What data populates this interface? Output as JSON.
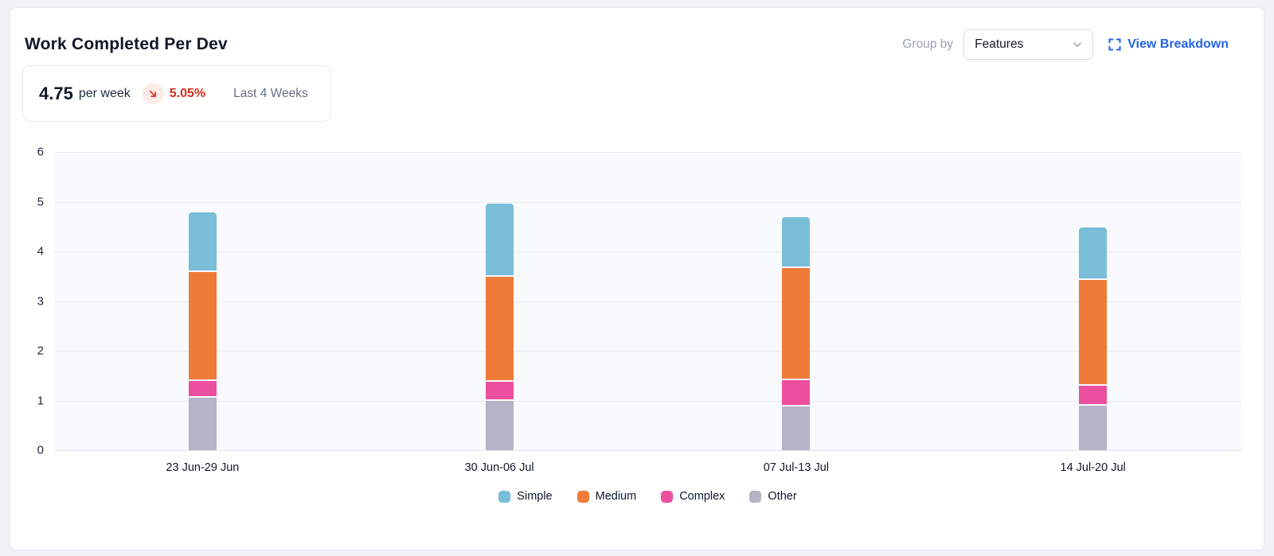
{
  "header": {
    "title": "Work Completed Per Dev",
    "group_by_label": "Group by",
    "group_by_value": "Features",
    "view_breakdown_label": "View Breakdown"
  },
  "summary": {
    "value": "4.75",
    "unit": "per week",
    "delta": "5.05%",
    "delta_direction": "down",
    "period": "Last 4 Weeks"
  },
  "icons": {
    "view_breakdown": "expand-icon",
    "group_by_select": "chevron-down-icon",
    "delta": "arrow-down-right-icon"
  },
  "colors": {
    "accent_blue": "#2563eb",
    "negative_red": "#d92d20",
    "negative_badge_bg": "#fcebe9",
    "simple": "#79bdd9",
    "medium": "#ee7b38",
    "complex": "#eb4f9e",
    "other": "#b5b3c6",
    "plot_background": "#f8fafd",
    "gridline": "#e9ecf1"
  },
  "chart_data": {
    "type": "bar",
    "stacked": true,
    "title": "Work Completed Per Dev",
    "categories": [
      "23 Jun-29 Jun",
      "30 Jun-06 Jul",
      "07 Jul-13 Jul",
      "14 Jul-20 Jul"
    ],
    "series": [
      {
        "name": "Simple",
        "color": "#79bdd9",
        "values": [
          1.2,
          1.47,
          1.02,
          1.06
        ]
      },
      {
        "name": "Medium",
        "color": "#ee7b38",
        "values": [
          2.18,
          2.11,
          2.26,
          2.12
        ]
      },
      {
        "name": "Complex",
        "color": "#eb4f9e",
        "values": [
          0.35,
          0.38,
          0.53,
          0.4
        ]
      },
      {
        "name": "Other",
        "color": "#b5b3c6",
        "values": [
          1.05,
          1.0,
          0.88,
          0.9
        ]
      }
    ],
    "stack_totals": [
      4.78,
      4.96,
      4.69,
      4.48
    ],
    "stack_order_bottom_to_top": [
      "Other",
      "Complex",
      "Medium",
      "Simple"
    ],
    "xlabel": "",
    "ylabel": "",
    "ylim": [
      0,
      6
    ],
    "yticks": [
      0,
      1,
      2,
      3,
      4,
      5,
      6
    ],
    "grid": "horizontal",
    "legend": [
      "Simple",
      "Medium",
      "Complex",
      "Other"
    ],
    "legend_position": "bottom"
  }
}
